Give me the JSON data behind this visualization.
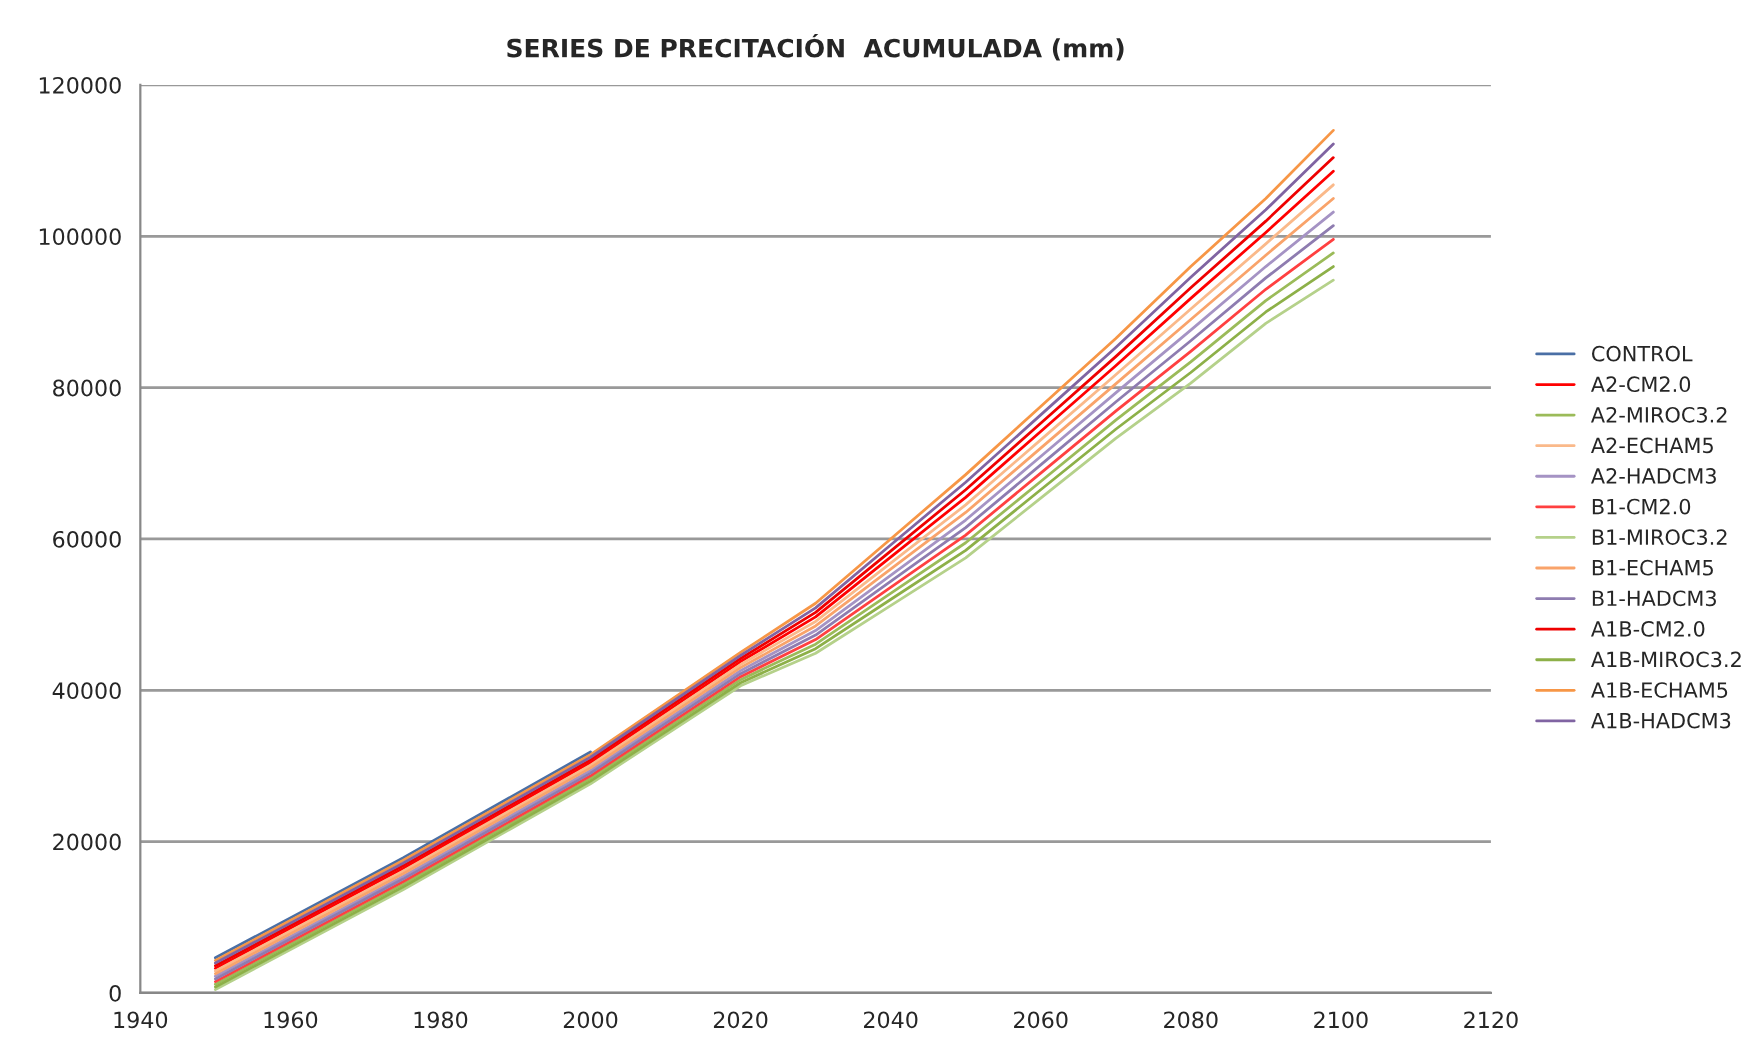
{
  "chart_data": {
    "type": "line",
    "title": "SERIES DE PRECITACIÓN  ACUMULADA (mm)",
    "xlim": [
      1940,
      2120
    ],
    "xticks": [
      1940,
      1960,
      1980,
      2000,
      2020,
      2040,
      2060,
      2080,
      2100,
      2120
    ],
    "ylim": [
      0,
      120000
    ],
    "yticks": [
      0,
      20000,
      40000,
      60000,
      80000,
      100000,
      120000
    ],
    "grid": "y",
    "legend": "right",
    "x": [
      1950,
      1975,
      2000,
      2020,
      2030,
      2040,
      2050,
      2060,
      2070,
      2080,
      2090,
      2099
    ],
    "series": [
      {
        "name": "CONTROL",
        "color": "#4a6fa5",
        "x": [
          1950,
          1975,
          2000
        ],
        "values": [
          4650,
          17850,
          31850
        ]
      },
      {
        "name": "A2-CM2.0",
        "color": "#ff0000",
        "values": [
          3250,
          16450,
          30450,
          43800,
          49700,
          57600,
          65500,
          74200,
          82900,
          91800,
          100500,
          108600
        ]
      },
      {
        "name": "A2-MIROC3.2",
        "color": "#9bbb59",
        "values": [
          1150,
          14350,
          28350,
          41400,
          46100,
          52800,
          59500,
          67600,
          75700,
          83400,
          91500,
          97800
        ]
      },
      {
        "name": "A2-ECHAM5",
        "color": "#fab98a",
        "values": [
          2900,
          16100,
          30100,
          43400,
          49100,
          56800,
          64500,
          73100,
          81700,
          90400,
          99000,
          106800
        ]
      },
      {
        "name": "A2-HADCM3",
        "color": "#a593c4",
        "values": [
          2200,
          15400,
          29400,
          42600,
          47900,
          55200,
          62500,
          70900,
          79300,
          87600,
          96000,
          103200
        ]
      },
      {
        "name": "B1-CM2.0",
        "color": "#ff4040",
        "values": [
          1500,
          14700,
          28700,
          41800,
          46700,
          53600,
          60500,
          68700,
          76900,
          84800,
          93000,
          99600
        ]
      },
      {
        "name": "B1-MIROC3.2",
        "color": "#b5d18a",
        "values": [
          450,
          13650,
          27650,
          40600,
          44900,
          51200,
          57500,
          65400,
          73300,
          80600,
          88500,
          94200
        ]
      },
      {
        "name": "B1-ECHAM5",
        "color": "#f9a36a",
        "values": [
          2550,
          15750,
          29750,
          43000,
          48500,
          56000,
          63500,
          72000,
          80500,
          89000,
          97500,
          105000
        ]
      },
      {
        "name": "B1-HADCM3",
        "color": "#8e7cb0",
        "values": [
          1850,
          15050,
          29050,
          42200,
          47300,
          54400,
          61500,
          69800,
          78100,
          86200,
          94500,
          101400
        ]
      },
      {
        "name": "A1B-CM2.0",
        "color": "#ee0000",
        "values": [
          3600,
          16800,
          30800,
          44200,
          50300,
          58400,
          66500,
          75300,
          84100,
          93200,
          102000,
          110400
        ]
      },
      {
        "name": "A1B-MIROC3.2",
        "color": "#8db048",
        "values": [
          800,
          14000,
          28000,
          41000,
          45500,
          52000,
          58500,
          66500,
          74500,
          82000,
          90000,
          96000
        ]
      },
      {
        "name": "A1B-ECHAM5",
        "color": "#f79646",
        "values": [
          4300,
          17500,
          31500,
          45000,
          51500,
          60000,
          68500,
          77500,
          86500,
          96000,
          105000,
          114000
        ]
      },
      {
        "name": "A1B-HADCM3",
        "color": "#8064a2",
        "values": [
          3950,
          17150,
          31150,
          44600,
          50900,
          59200,
          67500,
          76400,
          85300,
          94600,
          103500,
          112200
        ]
      }
    ]
  }
}
